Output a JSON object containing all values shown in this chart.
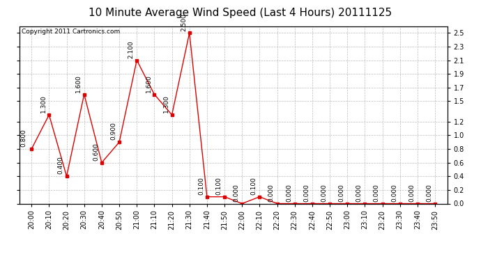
{
  "title": "10 Minute Average Wind Speed (Last 4 Hours) 20111125",
  "copyright": "Copyright 2011 Cartronics.com",
  "x_labels": [
    "20:00",
    "20:10",
    "20:20",
    "20:30",
    "20:40",
    "20:50",
    "21:00",
    "21:10",
    "21:20",
    "21:30",
    "21:40",
    "21:50",
    "22:00",
    "22:10",
    "22:20",
    "22:30",
    "22:40",
    "22:50",
    "23:00",
    "23:10",
    "23:20",
    "23:30",
    "23:40",
    "23:50"
  ],
  "y_values": [
    0.8,
    1.3,
    0.4,
    1.6,
    0.6,
    0.9,
    2.1,
    1.6,
    1.3,
    2.5,
    0.1,
    0.1,
    0.0,
    0.1,
    0.0,
    0.0,
    0.0,
    0.0,
    0.0,
    0.0,
    0.0,
    0.0,
    0.0,
    0.0
  ],
  "line_color": "#dd0000",
  "marker_color": "#dd0000",
  "bg_color": "#ffffff",
  "grid_color": "#bbbbbb",
  "ylim": [
    0.0,
    2.6
  ],
  "yticks_right": [
    0.0,
    0.2,
    0.4,
    0.6,
    0.8,
    1.0,
    1.2,
    1.5,
    1.7,
    1.9,
    2.1,
    2.3,
    2.5
  ],
  "title_fontsize": 11,
  "label_fontsize": 7,
  "annotation_fontsize": 6.5,
  "copyright_fontsize": 6.5
}
